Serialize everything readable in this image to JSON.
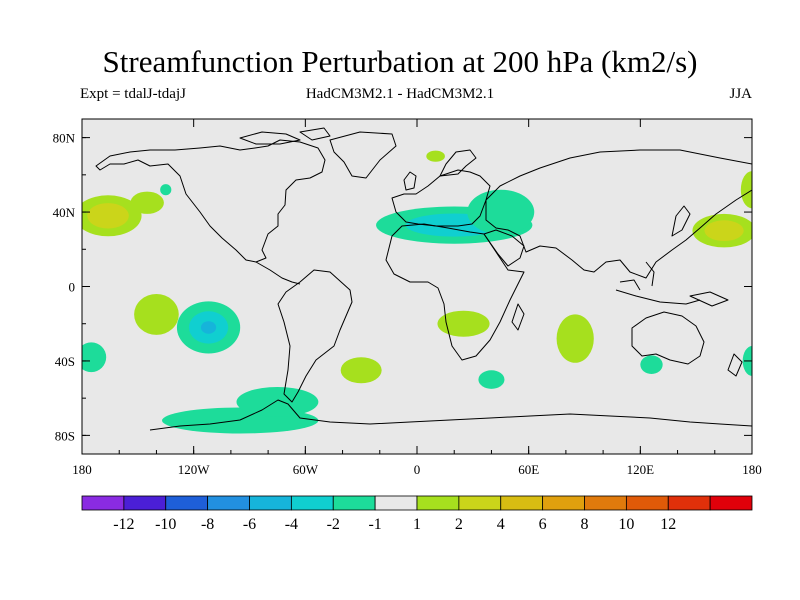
{
  "chart_data": {
    "type": "map-contour",
    "title": "Streamfunction Perturbation at 200 hPa (km2/s)",
    "subtitle_left": "Expt = tdalJ-tdajJ",
    "subtitle_center": "HadCM3M2.1 - HadCM3M2.1",
    "subtitle_right": "JJA",
    "lon_range": [
      -180,
      180
    ],
    "lat_range": [
      -90,
      90
    ],
    "x_ticks": [
      {
        "lon": -180,
        "label": "180"
      },
      {
        "lon": -120,
        "label": "120W"
      },
      {
        "lon": -60,
        "label": "60W"
      },
      {
        "lon": 0,
        "label": "0"
      },
      {
        "lon": 60,
        "label": "60E"
      },
      {
        "lon": 120,
        "label": "120E"
      },
      {
        "lon": 180,
        "label": "180"
      }
    ],
    "y_ticks": [
      {
        "lat": 80,
        "label": "80N"
      },
      {
        "lat": 40,
        "label": "40N"
      },
      {
        "lat": 0,
        "label": "0"
      },
      {
        "lat": -40,
        "label": "40S"
      },
      {
        "lat": -80,
        "label": "80S"
      }
    ],
    "colorbar": {
      "colors": [
        "#8a2be2",
        "#4b1fd6",
        "#1e5fd9",
        "#2290e0",
        "#16b4da",
        "#10cfd0",
        "#1ddc9a",
        "#e8e8e8",
        "#a6e01e",
        "#cbd51a",
        "#d8bd12",
        "#e0a00e",
        "#e07a0c",
        "#e05a08",
        "#e0300a",
        "#e0000a"
      ],
      "tick_labels": [
        "-12",
        "-10",
        "-8",
        "-6",
        "-4",
        "-2",
        "-1",
        "1",
        "2",
        "4",
        "6",
        "8",
        "10",
        "12"
      ]
    },
    "anomalies": [
      {
        "name": "north-pacific-positive",
        "lon": -166,
        "lat": 38,
        "rx": 18,
        "ry": 11,
        "levels": [
          2,
          4
        ]
      },
      {
        "name": "alaska-negative-patch",
        "lon": -135,
        "lat": 52,
        "rx": 3,
        "ry": 3,
        "levels": [
          -1
        ]
      },
      {
        "name": "north-pacific-east-positive",
        "lon": -145,
        "lat": 45,
        "rx": 9,
        "ry": 6,
        "levels": [
          2
        ]
      },
      {
        "name": "europe-middle-east-negative",
        "lon": 20,
        "lat": 33,
        "rx": 42,
        "ry": 10,
        "levels": [
          -1,
          -2
        ]
      },
      {
        "name": "arabia-negative",
        "lon": 45,
        "lat": 40,
        "rx": 18,
        "ry": 12,
        "levels": [
          -1
        ]
      },
      {
        "name": "west-pacific-positive",
        "lon": 165,
        "lat": 30,
        "rx": 17,
        "ry": 9,
        "levels": [
          2,
          4
        ]
      },
      {
        "name": "east-pacific-south-positive",
        "lon": -140,
        "lat": -15,
        "rx": 12,
        "ry": 11,
        "levels": [
          2
        ]
      },
      {
        "name": "southeast-pacific-negative",
        "lon": -112,
        "lat": -22,
        "rx": 17,
        "ry": 14,
        "levels": [
          -1,
          -2,
          -4
        ]
      },
      {
        "name": "south-pacific-west-negative",
        "lon": -175,
        "lat": -38,
        "rx": 8,
        "ry": 8,
        "levels": [
          -1
        ]
      },
      {
        "name": "south-atlantic-positive",
        "lon": -30,
        "lat": -45,
        "rx": 11,
        "ry": 7,
        "levels": [
          2
        ]
      },
      {
        "name": "southern-africa-positive",
        "lon": 25,
        "lat": -20,
        "rx": 14,
        "ry": 7,
        "levels": [
          2
        ]
      },
      {
        "name": "south-indian-negative",
        "lon": 40,
        "lat": -50,
        "rx": 7,
        "ry": 5,
        "levels": [
          -1
        ]
      },
      {
        "name": "indian-ocean-positive",
        "lon": 85,
        "lat": -28,
        "rx": 10,
        "ry": 13,
        "levels": [
          2
        ]
      },
      {
        "name": "australia-negative",
        "lon": 126,
        "lat": -42,
        "rx": 6,
        "ry": 5,
        "levels": [
          -1
        ]
      },
      {
        "name": "dateline-south-negative",
        "lon": 180,
        "lat": -40,
        "rx": 5,
        "ry": 8,
        "levels": [
          -1
        ]
      },
      {
        "name": "antarctic-negative-band",
        "lon": -95,
        "lat": -72,
        "rx": 42,
        "ry": 7,
        "levels": [
          -1
        ]
      },
      {
        "name": "drake-negative",
        "lon": -75,
        "lat": -62,
        "rx": 22,
        "ry": 8,
        "levels": [
          -1
        ]
      },
      {
        "name": "scandinavia-positive",
        "lon": 10,
        "lat": 70,
        "rx": 5,
        "ry": 3,
        "levels": [
          2
        ]
      },
      {
        "name": "northwest-pacific-positive",
        "lon": 180,
        "lat": 52,
        "rx": 6,
        "ry": 10,
        "levels": [
          2
        ]
      }
    ]
  }
}
